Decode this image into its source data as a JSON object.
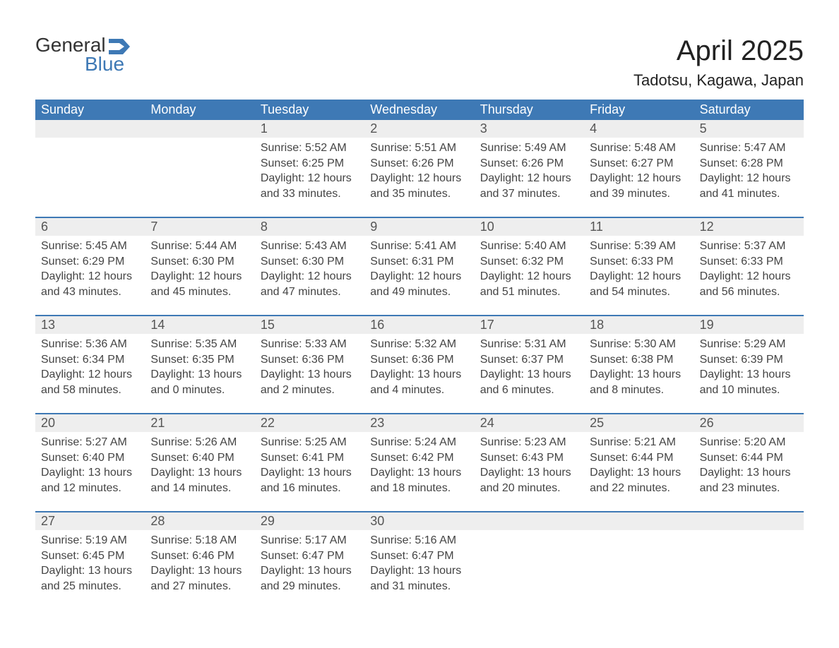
{
  "brand": {
    "line1": "General",
    "line2": "Blue",
    "flag_color": "#3e79b5"
  },
  "title": {
    "month": "April 2025",
    "location": "Tadotsu, Kagawa, Japan"
  },
  "colors": {
    "header_bg": "#3e79b5",
    "daynum_bg": "#eeeeee",
    "row_rule": "#3e79b5",
    "page_bg": "#ffffff",
    "text": "#333333"
  },
  "day_names": [
    "Sunday",
    "Monday",
    "Tuesday",
    "Wednesday",
    "Thursday",
    "Friday",
    "Saturday"
  ],
  "labels": {
    "sunrise": "Sunrise:",
    "sunset": "Sunset:",
    "daylight": "Daylight:"
  },
  "weeks": [
    [
      null,
      null,
      {
        "n": 1,
        "sunrise": "5:52 AM",
        "sunset": "6:25 PM",
        "daylight": "12 hours and 33 minutes."
      },
      {
        "n": 2,
        "sunrise": "5:51 AM",
        "sunset": "6:26 PM",
        "daylight": "12 hours and 35 minutes."
      },
      {
        "n": 3,
        "sunrise": "5:49 AM",
        "sunset": "6:26 PM",
        "daylight": "12 hours and 37 minutes."
      },
      {
        "n": 4,
        "sunrise": "5:48 AM",
        "sunset": "6:27 PM",
        "daylight": "12 hours and 39 minutes."
      },
      {
        "n": 5,
        "sunrise": "5:47 AM",
        "sunset": "6:28 PM",
        "daylight": "12 hours and 41 minutes."
      }
    ],
    [
      {
        "n": 6,
        "sunrise": "5:45 AM",
        "sunset": "6:29 PM",
        "daylight": "12 hours and 43 minutes."
      },
      {
        "n": 7,
        "sunrise": "5:44 AM",
        "sunset": "6:30 PM",
        "daylight": "12 hours and 45 minutes."
      },
      {
        "n": 8,
        "sunrise": "5:43 AM",
        "sunset": "6:30 PM",
        "daylight": "12 hours and 47 minutes."
      },
      {
        "n": 9,
        "sunrise": "5:41 AM",
        "sunset": "6:31 PM",
        "daylight": "12 hours and 49 minutes."
      },
      {
        "n": 10,
        "sunrise": "5:40 AM",
        "sunset": "6:32 PM",
        "daylight": "12 hours and 51 minutes."
      },
      {
        "n": 11,
        "sunrise": "5:39 AM",
        "sunset": "6:33 PM",
        "daylight": "12 hours and 54 minutes."
      },
      {
        "n": 12,
        "sunrise": "5:37 AM",
        "sunset": "6:33 PM",
        "daylight": "12 hours and 56 minutes."
      }
    ],
    [
      {
        "n": 13,
        "sunrise": "5:36 AM",
        "sunset": "6:34 PM",
        "daylight": "12 hours and 58 minutes."
      },
      {
        "n": 14,
        "sunrise": "5:35 AM",
        "sunset": "6:35 PM",
        "daylight": "13 hours and 0 minutes."
      },
      {
        "n": 15,
        "sunrise": "5:33 AM",
        "sunset": "6:36 PM",
        "daylight": "13 hours and 2 minutes."
      },
      {
        "n": 16,
        "sunrise": "5:32 AM",
        "sunset": "6:36 PM",
        "daylight": "13 hours and 4 minutes."
      },
      {
        "n": 17,
        "sunrise": "5:31 AM",
        "sunset": "6:37 PM",
        "daylight": "13 hours and 6 minutes."
      },
      {
        "n": 18,
        "sunrise": "5:30 AM",
        "sunset": "6:38 PM",
        "daylight": "13 hours and 8 minutes."
      },
      {
        "n": 19,
        "sunrise": "5:29 AM",
        "sunset": "6:39 PM",
        "daylight": "13 hours and 10 minutes."
      }
    ],
    [
      {
        "n": 20,
        "sunrise": "5:27 AM",
        "sunset": "6:40 PM",
        "daylight": "13 hours and 12 minutes."
      },
      {
        "n": 21,
        "sunrise": "5:26 AM",
        "sunset": "6:40 PM",
        "daylight": "13 hours and 14 minutes."
      },
      {
        "n": 22,
        "sunrise": "5:25 AM",
        "sunset": "6:41 PM",
        "daylight": "13 hours and 16 minutes."
      },
      {
        "n": 23,
        "sunrise": "5:24 AM",
        "sunset": "6:42 PM",
        "daylight": "13 hours and 18 minutes."
      },
      {
        "n": 24,
        "sunrise": "5:23 AM",
        "sunset": "6:43 PM",
        "daylight": "13 hours and 20 minutes."
      },
      {
        "n": 25,
        "sunrise": "5:21 AM",
        "sunset": "6:44 PM",
        "daylight": "13 hours and 22 minutes."
      },
      {
        "n": 26,
        "sunrise": "5:20 AM",
        "sunset": "6:44 PM",
        "daylight": "13 hours and 23 minutes."
      }
    ],
    [
      {
        "n": 27,
        "sunrise": "5:19 AM",
        "sunset": "6:45 PM",
        "daylight": "13 hours and 25 minutes."
      },
      {
        "n": 28,
        "sunrise": "5:18 AM",
        "sunset": "6:46 PM",
        "daylight": "13 hours and 27 minutes."
      },
      {
        "n": 29,
        "sunrise": "5:17 AM",
        "sunset": "6:47 PM",
        "daylight": "13 hours and 29 minutes."
      },
      {
        "n": 30,
        "sunrise": "5:16 AM",
        "sunset": "6:47 PM",
        "daylight": "13 hours and 31 minutes."
      },
      null,
      null,
      null
    ]
  ]
}
